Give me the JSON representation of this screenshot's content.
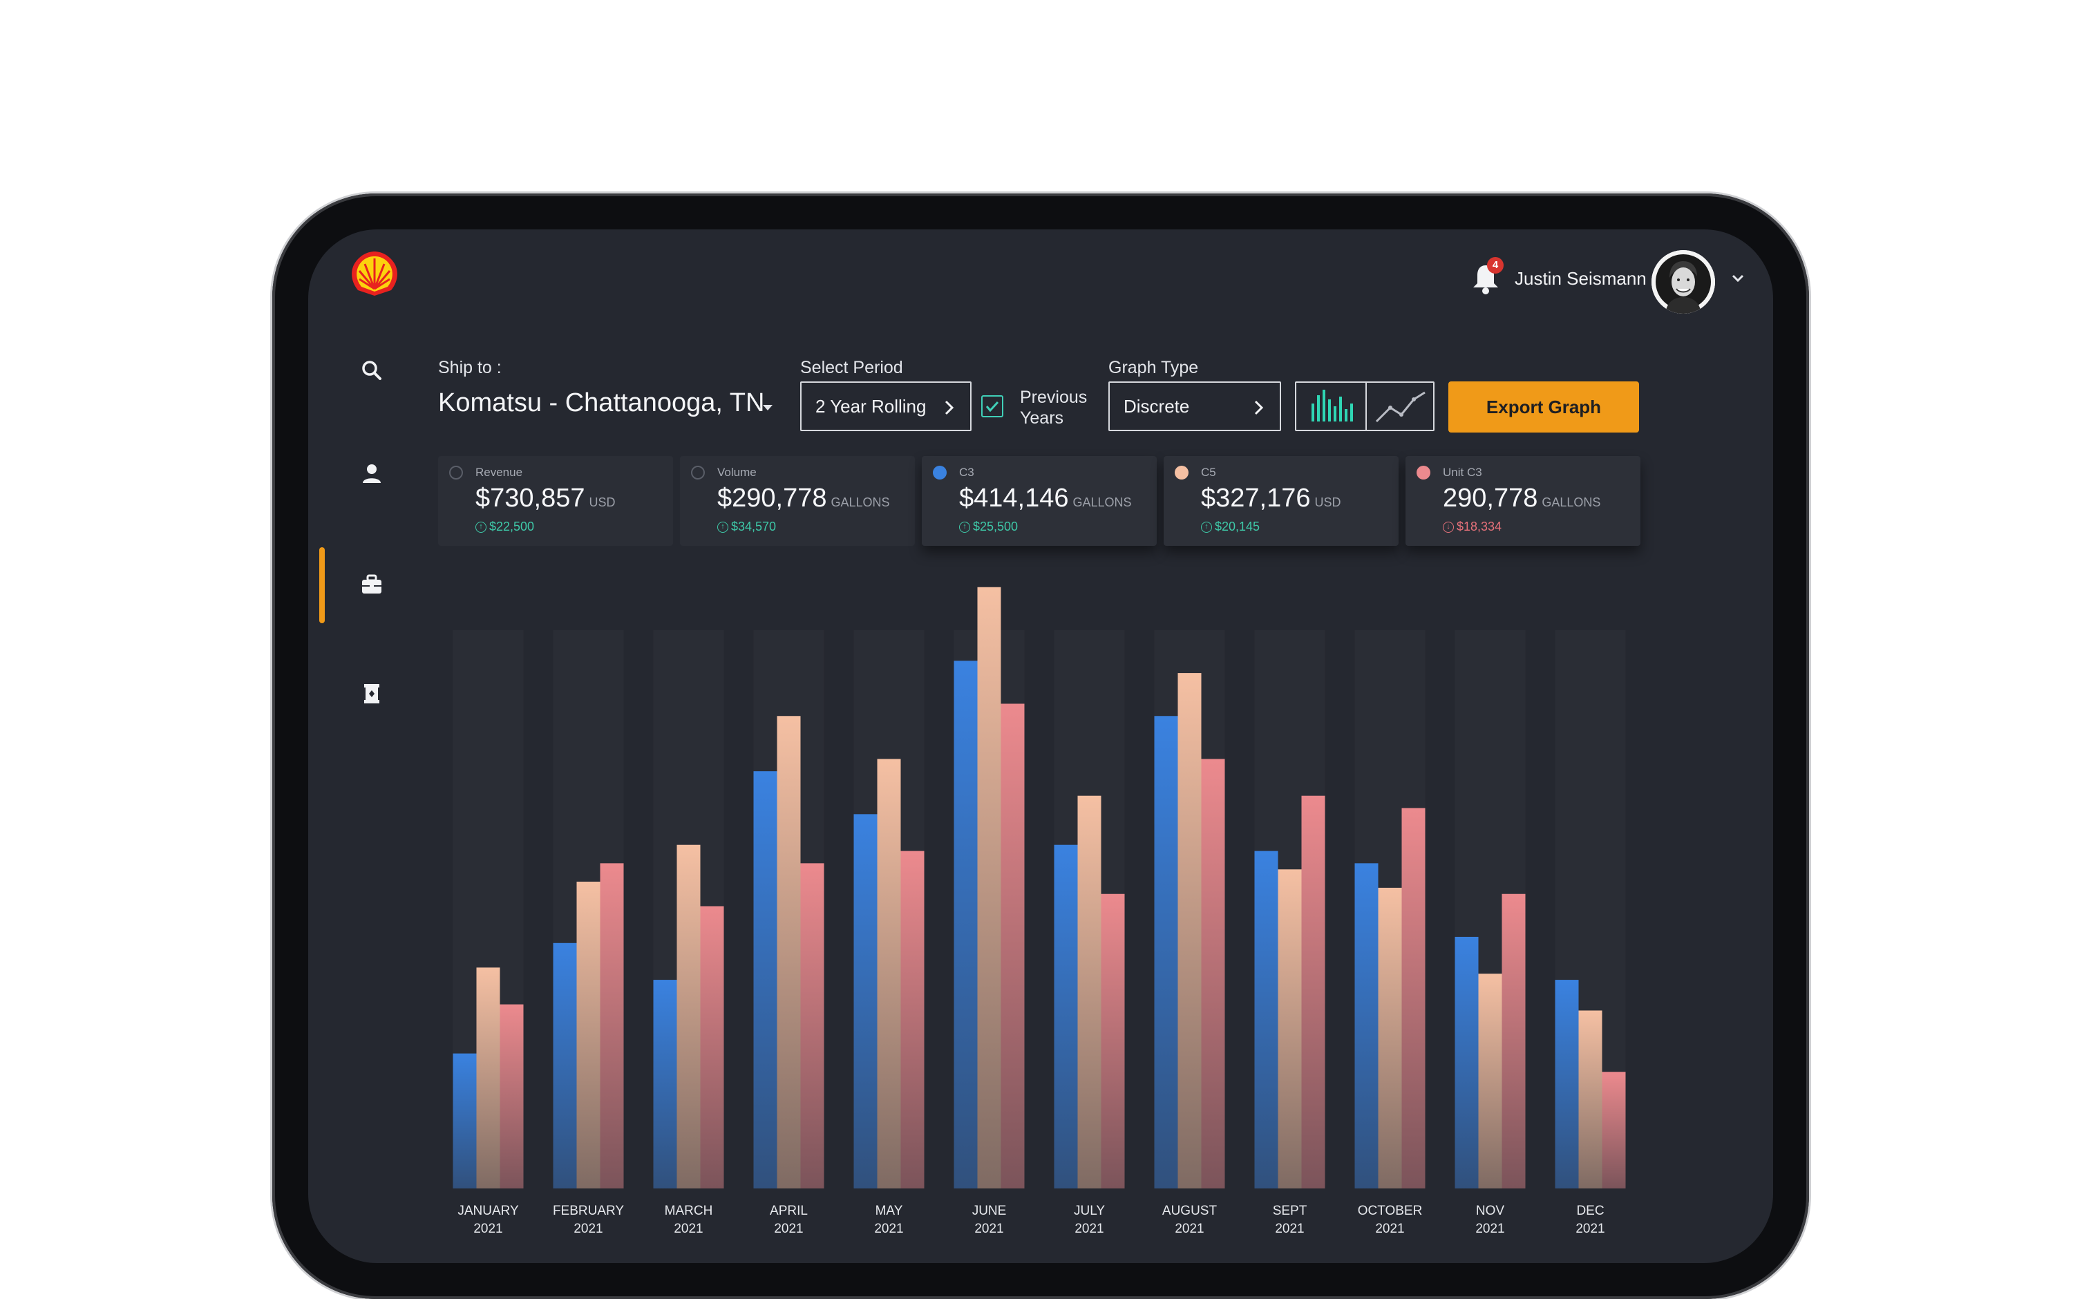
{
  "user": {
    "name": "Justin Seismann",
    "notifications": "4"
  },
  "nav": {
    "items": [
      "search-icon",
      "person-icon",
      "briefcase-icon",
      "tank-icon"
    ],
    "active_index": 2
  },
  "controls": {
    "ship_to_label": "Ship to :",
    "ship_to_value": "Komatsu - Chattanooga, TN",
    "period_label": "Select Period",
    "period_value": "2 Year Rolling",
    "previous_years_line1": "Previous",
    "previous_years_line2": "Years",
    "previous_years_checked": true,
    "graph_type_label": "Graph Type",
    "graph_type_value": "Discrete",
    "export_label": "Export Graph"
  },
  "metrics": [
    {
      "title": "Revenue",
      "value": "$730,857",
      "unit": "USD",
      "delta": "$22,500",
      "direction": "up",
      "selected": false,
      "color": ""
    },
    {
      "title": "Volume",
      "value": "$290,778",
      "unit": "GALLONS",
      "delta": "$34,570",
      "direction": "up",
      "selected": false,
      "color": ""
    },
    {
      "title": "C3",
      "value": "$414,146",
      "unit": "GALLONS",
      "delta": "$25,500",
      "direction": "up",
      "selected": true,
      "color": "#3a82e0"
    },
    {
      "title": "C5",
      "value": "$327,176",
      "unit": "USD",
      "delta": "$20,145",
      "direction": "up",
      "selected": true,
      "color": "#f5c0a3"
    },
    {
      "title": "Unit C3",
      "value": "290,778",
      "unit": "GALLONS",
      "delta": "$18,334",
      "direction": "down",
      "selected": true,
      "color": "#ec8a8e"
    }
  ],
  "chart_data": {
    "type": "bar",
    "categories": [
      [
        "JANUARY",
        "2021"
      ],
      [
        "FEBRUARY",
        "2021"
      ],
      [
        "MARCH",
        "2021"
      ],
      [
        "APRIL",
        "2021"
      ],
      [
        "MAY",
        "2021"
      ],
      [
        "JUNE",
        "2021"
      ],
      [
        "JULY",
        "2021"
      ],
      [
        "AUGUST",
        "2021"
      ],
      [
        "SEPT",
        "2021"
      ],
      [
        "OCTOBER",
        "2021"
      ],
      [
        "NOV",
        "2021"
      ],
      [
        "DEC",
        "2021"
      ]
    ],
    "series": [
      {
        "name": "C3",
        "color": "#3a82e0",
        "values": [
          22,
          40,
          34,
          68,
          61,
          86,
          56,
          77,
          55,
          53,
          41,
          34
        ]
      },
      {
        "name": "C5",
        "color": "#f5c0a3",
        "values": [
          36,
          50,
          56,
          77,
          70,
          98,
          64,
          84,
          52,
          49,
          35,
          29
        ]
      },
      {
        "name": "Unit C3",
        "color": "#ec8a8e",
        "values": [
          30,
          53,
          46,
          53,
          55,
          79,
          48,
          70,
          64,
          62,
          48,
          19
        ]
      }
    ],
    "ylim": [
      0,
      100
    ],
    "grid": false,
    "xlabel": "",
    "ylabel": ""
  }
}
